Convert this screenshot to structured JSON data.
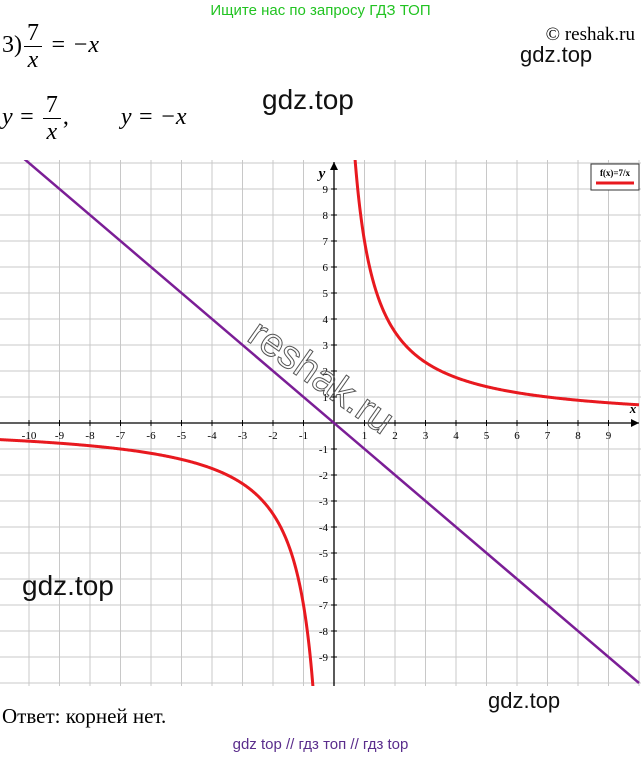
{
  "banner": "Ищите нас по запросу ГДЗ ТОП",
  "copyright": "© reshak.ru",
  "watermarks": {
    "top_right": "gdz.top",
    "center_top": "gdz.top",
    "left_mid": "gdz.top",
    "bottom_right": "gdz.top",
    "diagonal": "reshak.ru"
  },
  "problem": {
    "number": "3)",
    "numerator": "7",
    "denominator": "x",
    "rhs": "= −x",
    "line2_lhs": "y =",
    "line2_num": "7",
    "line2_den": "x",
    "line2_sep": ",",
    "line2_eq2": "y = −x"
  },
  "answer": "Ответ: корней нет.",
  "footer": "gdz top  //  гдз топ  //  гдз top",
  "colors": {
    "hyperbola": "#e8191f",
    "line": "#7b1e96",
    "grid": "#c8c8c8",
    "axis": "#000000"
  },
  "chart_data": {
    "type": "line",
    "xlabel": "x",
    "ylabel": "y",
    "xlim": [
      -11,
      10
    ],
    "ylim": [
      -10,
      10
    ],
    "x_ticks": [
      -10,
      -9,
      -8,
      -7,
      -6,
      -5,
      -4,
      -3,
      -2,
      -1,
      1,
      2,
      3,
      4,
      5,
      6,
      7,
      8,
      9
    ],
    "y_ticks": [
      9,
      8,
      7,
      6,
      5,
      4,
      3,
      2,
      1,
      -1,
      -2,
      -3,
      -4,
      -5,
      -6,
      -7,
      -8,
      -9
    ],
    "grid": true,
    "legend": {
      "position": "top-right",
      "entries": [
        "f(x)=7/x"
      ]
    },
    "series": [
      {
        "name": "f(x)=7/x",
        "formula": "7/x",
        "color": "#e8191f"
      },
      {
        "formula": "-x",
        "color": "#7b1e96"
      }
    ]
  }
}
